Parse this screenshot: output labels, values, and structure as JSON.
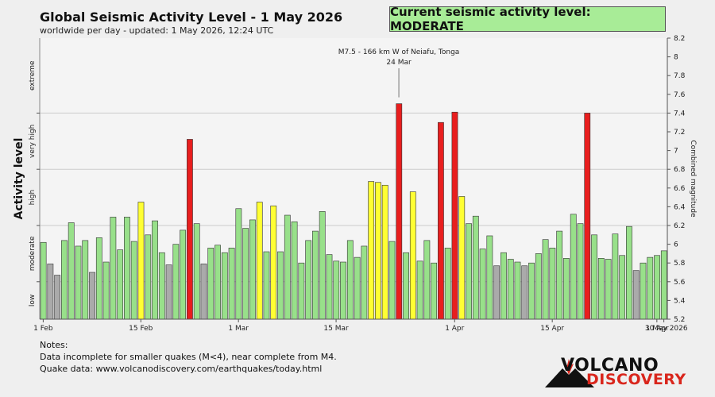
{
  "header": {
    "title": "Global Seismic Activity Level - 1 May 2026",
    "subtitle": "worldwide per day - updated:  1 May 2026, 12:24 UTC",
    "status": "Current seismic activity level: MODERATE"
  },
  "notes": {
    "heading": "Notes:",
    "line1": "Data incomplete for smaller quakes (M<4), near complete from M4.",
    "line2": "Quake data: www.volcanodiscovery.com/earthquakes/today.html"
  },
  "logo": {
    "line1": "VOLCANO",
    "line2": "DISCOVERY",
    "icon": "volcano-icon"
  },
  "colors": {
    "low": "#aaaaaa",
    "moderate": "#98e08a",
    "high": "#ffff33",
    "very_high": "#e81e1e",
    "status_box": "#a8ec97",
    "grid": "#cccccc"
  },
  "chart_data": {
    "type": "bar",
    "ylabel": "Activity level",
    "y2label": "Combined magnitude",
    "ylim": [
      5.2,
      8.2
    ],
    "right_ticks": [
      5.2,
      5.4,
      5.6,
      5.8,
      6.0,
      6.2,
      6.4,
      6.6,
      6.8,
      7.0,
      7.2,
      7.4,
      7.6,
      7.8,
      8.0,
      8.2
    ],
    "right_tick_labels": [
      "5.2",
      "5.4",
      "5.6",
      "5.8",
      "6",
      "6.2",
      "6.4",
      "6.6",
      "6.8",
      "7",
      "7.2",
      "7.4",
      "7.6",
      "7.8",
      "8",
      "8.2"
    ],
    "level_labels": [
      "low",
      "moderate",
      "high",
      "very high",
      "extreme"
    ],
    "level_ranges": [
      [
        5.2,
        5.6
      ],
      [
        5.6,
        6.2
      ],
      [
        6.2,
        6.8
      ],
      [
        6.8,
        7.4
      ],
      [
        7.4,
        8.2
      ]
    ],
    "level_lines": [
      5.6,
      6.2,
      6.8,
      7.4
    ],
    "x_ticks": [
      {
        "day": 0,
        "label": "1 Feb"
      },
      {
        "day": 14,
        "label": "15 Feb"
      },
      {
        "day": 28,
        "label": "1 Mar"
      },
      {
        "day": 42,
        "label": "15 Mar"
      },
      {
        "day": 59,
        "label": "1 Apr"
      },
      {
        "day": 73,
        "label": "15 Apr"
      },
      {
        "day": 88,
        "label": "30 Apr"
      },
      {
        "day": 89,
        "label": "1 May 2026"
      }
    ],
    "annotation": {
      "day": 51,
      "text1": "M7.5 - 166 km W of Neiafu, Tonga",
      "text2": "24 Mar"
    },
    "values": [
      6.02,
      5.79,
      5.67,
      6.04,
      6.23,
      5.98,
      6.04,
      5.7,
      6.07,
      5.81,
      6.29,
      5.94,
      6.29,
      6.03,
      6.45,
      6.1,
      6.25,
      5.91,
      5.78,
      6.0,
      6.15,
      7.12,
      6.22,
      5.79,
      5.96,
      5.99,
      5.91,
      5.96,
      6.38,
      6.17,
      6.26,
      6.45,
      5.92,
      6.41,
      5.92,
      6.31,
      6.24,
      5.8,
      6.04,
      6.14,
      6.35,
      5.89,
      5.82,
      5.81,
      6.04,
      5.86,
      5.98,
      6.67,
      6.66,
      6.63,
      6.03,
      7.5,
      5.91,
      6.56,
      5.82,
      6.04,
      5.8,
      7.3,
      5.96,
      7.41,
      6.51,
      6.22,
      6.3,
      5.95,
      6.09,
      5.77,
      5.91,
      5.84,
      5.81,
      5.77,
      5.8,
      5.9,
      6.05,
      5.96,
      6.14,
      5.85,
      6.32,
      6.22,
      7.4,
      6.1,
      5.85,
      5.84,
      6.11,
      5.88,
      6.19,
      5.72,
      5.8,
      5.86,
      5.88,
      5.93
    ],
    "levels": [
      "m",
      "l",
      "l",
      "m",
      "m",
      "m",
      "m",
      "l",
      "m",
      "m",
      "m",
      "m",
      "m",
      "m",
      "h",
      "m",
      "m",
      "m",
      "l",
      "m",
      "m",
      "v",
      "m",
      "l",
      "m",
      "m",
      "m",
      "m",
      "m",
      "m",
      "m",
      "h",
      "m",
      "h",
      "m",
      "m",
      "m",
      "m",
      "m",
      "m",
      "m",
      "m",
      "m",
      "m",
      "m",
      "m",
      "m",
      "h",
      "h",
      "h",
      "m",
      "v",
      "m",
      "h",
      "m",
      "m",
      "m",
      "v",
      "m",
      "v",
      "h",
      "m",
      "m",
      "m",
      "m",
      "l",
      "m",
      "m",
      "m",
      "l",
      "m",
      "m",
      "m",
      "m",
      "m",
      "m",
      "m",
      "m",
      "v",
      "m",
      "m",
      "m",
      "m",
      "m",
      "m",
      "l",
      "m",
      "m",
      "m",
      "m"
    ]
  }
}
